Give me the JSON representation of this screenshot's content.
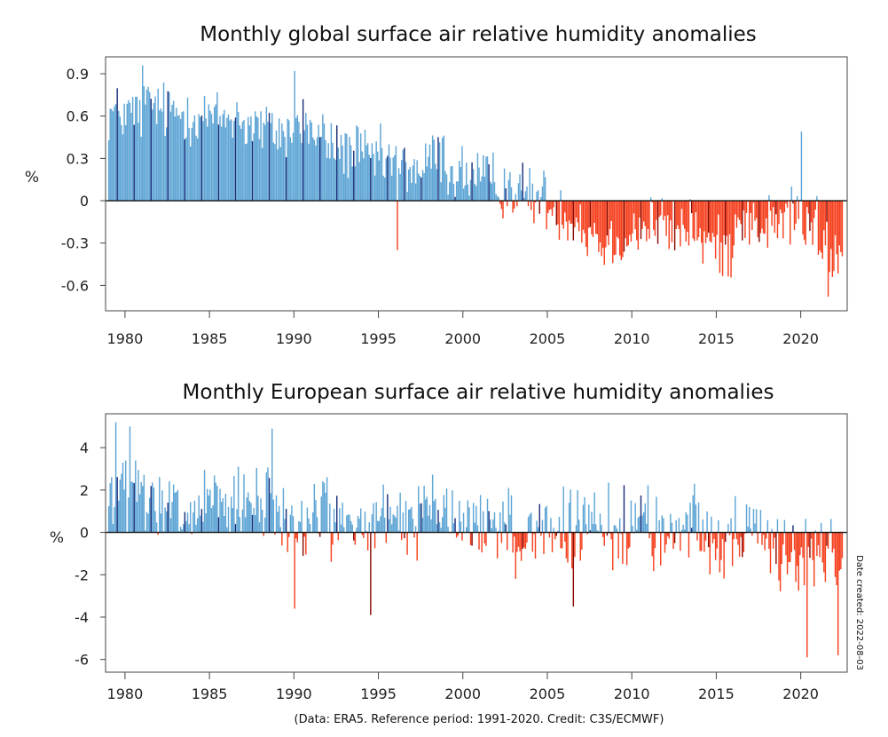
{
  "chart_data": [
    {
      "type": "bar",
      "title": "Monthly global surface air relative humidity anomalies",
      "ylabel": "%",
      "xlabel": "",
      "xlim": [
        1978.85,
        2022.75
      ],
      "ylim": [
        -0.78,
        1.02
      ],
      "yticks": [
        -0.6,
        -0.3,
        0,
        0.3,
        0.6,
        0.9
      ],
      "ytick_labels": [
        "-0.6",
        "-0.3",
        "0",
        "0.3",
        "0.6",
        "0.9"
      ],
      "xticks": [
        1980,
        1985,
        1990,
        1995,
        2000,
        2005,
        2010,
        2015,
        2020
      ],
      "xtick_labels": [
        "1980",
        "1985",
        "1990",
        "1995",
        "2000",
        "2005",
        "2010",
        "2015",
        "2020"
      ],
      "colors": {
        "positive": "#5ea5d5",
        "positive_highlight": "#1a2f7a",
        "negative": "#f5401e",
        "negative_highlight": "#8b0a00"
      },
      "start_year": 1979,
      "start_month": 1,
      "annual_anomalies": [
        {
          "year": 1979,
          "value": 0.62
        },
        {
          "year": 1980,
          "value": 0.62
        },
        {
          "year": 1981,
          "value": 0.68
        },
        {
          "year": 1982,
          "value": 0.63
        },
        {
          "year": 1983,
          "value": 0.62
        },
        {
          "year": 1984,
          "value": 0.6
        },
        {
          "year": 1985,
          "value": 0.58
        },
        {
          "year": 1986,
          "value": 0.6
        },
        {
          "year": 1987,
          "value": 0.53
        },
        {
          "year": 1988,
          "value": 0.5
        },
        {
          "year": 1989,
          "value": 0.48
        },
        {
          "year": 1990,
          "value": 0.55
        },
        {
          "year": 1991,
          "value": 0.45
        },
        {
          "year": 1992,
          "value": 0.38
        },
        {
          "year": 1993,
          "value": 0.35
        },
        {
          "year": 1994,
          "value": 0.3
        },
        {
          "year": 1995,
          "value": 0.28
        },
        {
          "year": 1996,
          "value": 0.24
        },
        {
          "year": 1997,
          "value": 0.22
        },
        {
          "year": 1998,
          "value": 0.32
        },
        {
          "year": 1999,
          "value": 0.2
        },
        {
          "year": 2000,
          "value": 0.18
        },
        {
          "year": 2001,
          "value": 0.14
        },
        {
          "year": 2002,
          "value": 0.1
        },
        {
          "year": 2003,
          "value": 0.06
        },
        {
          "year": 2004,
          "value": 0.02
        },
        {
          "year": 2005,
          "value": -0.06
        },
        {
          "year": 2006,
          "value": -0.12
        },
        {
          "year": 2007,
          "value": -0.22
        },
        {
          "year": 2008,
          "value": -0.3
        },
        {
          "year": 2009,
          "value": -0.26
        },
        {
          "year": 2010,
          "value": -0.2
        },
        {
          "year": 2011,
          "value": -0.16
        },
        {
          "year": 2012,
          "value": -0.22
        },
        {
          "year": 2013,
          "value": -0.18
        },
        {
          "year": 2014,
          "value": -0.3
        },
        {
          "year": 2015,
          "value": -0.34
        },
        {
          "year": 2016,
          "value": -0.12
        },
        {
          "year": 2017,
          "value": -0.18
        },
        {
          "year": 2018,
          "value": -0.16
        },
        {
          "year": 2019,
          "value": -0.1
        },
        {
          "year": 2020,
          "value": -0.18
        },
        {
          "year": 2021,
          "value": -0.35
        },
        {
          "year": 2022,
          "value": -0.42
        }
      ],
      "highlight_month": 7,
      "last_month": "2022-06",
      "annotated_extremes": [
        {
          "date": "1981-01",
          "value": 0.96
        },
        {
          "date": "1990-01",
          "value": 0.92
        },
        {
          "date": "1996-02",
          "value": -0.35
        },
        {
          "date": "2020-01",
          "value": 0.49
        },
        {
          "date": "2021-08",
          "value": -0.68
        }
      ]
    },
    {
      "type": "bar",
      "title": "Monthly European surface air relative humidity anomalies",
      "ylabel": "%",
      "xlabel": "",
      "xlim": [
        1978.85,
        2022.75
      ],
      "ylim": [
        -6.6,
        5.6
      ],
      "yticks": [
        -6,
        -4,
        -2,
        0,
        2,
        4
      ],
      "ytick_labels": [
        "-6",
        "-4",
        "-2",
        "0",
        "2",
        "4"
      ],
      "xticks": [
        1980,
        1985,
        1990,
        1995,
        2000,
        2005,
        2010,
        2015,
        2020
      ],
      "xtick_labels": [
        "1980",
        "1985",
        "1990",
        "1995",
        "2000",
        "2005",
        "2010",
        "2015",
        "2020"
      ],
      "colors": {
        "positive": "#5ea5d5",
        "positive_highlight": "#1a2f7a",
        "negative": "#f5401e",
        "negative_highlight": "#8b0a00"
      },
      "start_year": 1979,
      "start_month": 1,
      "annual_anomalies": [
        {
          "year": 1979,
          "value": 1.8
        },
        {
          "year": 1980,
          "value": 2.0
        },
        {
          "year": 1981,
          "value": 1.2
        },
        {
          "year": 1982,
          "value": 1.0
        },
        {
          "year": 1983,
          "value": 0.8
        },
        {
          "year": 1984,
          "value": 1.0
        },
        {
          "year": 1985,
          "value": 1.4
        },
        {
          "year": 1986,
          "value": 1.0
        },
        {
          "year": 1987,
          "value": 1.2
        },
        {
          "year": 1988,
          "value": 1.4
        },
        {
          "year": 1989,
          "value": 0.6
        },
        {
          "year": 1990,
          "value": 0.2
        },
        {
          "year": 1991,
          "value": 1.2
        },
        {
          "year": 1992,
          "value": 0.6
        },
        {
          "year": 1993,
          "value": 0.3
        },
        {
          "year": 1994,
          "value": 0.4
        },
        {
          "year": 1995,
          "value": 0.5
        },
        {
          "year": 1996,
          "value": 0.6
        },
        {
          "year": 1997,
          "value": 0.8
        },
        {
          "year": 1998,
          "value": 1.0
        },
        {
          "year": 1999,
          "value": 0.6
        },
        {
          "year": 2000,
          "value": 0.4
        },
        {
          "year": 2001,
          "value": 0.4
        },
        {
          "year": 2002,
          "value": 0.3
        },
        {
          "year": 2003,
          "value": -0.4
        },
        {
          "year": 2004,
          "value": 0.3
        },
        {
          "year": 2005,
          "value": 0.2
        },
        {
          "year": 2006,
          "value": -0.2
        },
        {
          "year": 2007,
          "value": 0.3
        },
        {
          "year": 2008,
          "value": 0.2
        },
        {
          "year": 2009,
          "value": 0.2
        },
        {
          "year": 2010,
          "value": 0.6
        },
        {
          "year": 2011,
          "value": -0.2
        },
        {
          "year": 2012,
          "value": 0.2
        },
        {
          "year": 2013,
          "value": 0.5
        },
        {
          "year": 2014,
          "value": 0.1
        },
        {
          "year": 2015,
          "value": -0.4
        },
        {
          "year": 2016,
          "value": -0.2
        },
        {
          "year": 2017,
          "value": -0.4
        },
        {
          "year": 2018,
          "value": -0.6
        },
        {
          "year": 2019,
          "value": -1.0
        },
        {
          "year": 2020,
          "value": -1.2
        },
        {
          "year": 2021,
          "value": -1.0
        },
        {
          "year": 2022,
          "value": -2.2
        }
      ],
      "highlight_month": 7,
      "last_month": "2022-06",
      "annotated_extremes": [
        {
          "date": "1979-06",
          "value": 5.2
        },
        {
          "date": "1980-04",
          "value": 5.0
        },
        {
          "date": "1988-09",
          "value": 4.9
        },
        {
          "date": "1990-01",
          "value": -3.6
        },
        {
          "date": "1994-07",
          "value": -3.9
        },
        {
          "date": "2006-07",
          "value": -3.5
        },
        {
          "date": "2020-05",
          "value": -5.9
        },
        {
          "date": "2022-03",
          "value": -5.8
        }
      ]
    }
  ],
  "footer": {
    "credit": "(Data: ERA5.  Reference period: 1991-2020.  Credit: C3S/ECMWF)",
    "date_created": "Date created:  2022-08-03"
  }
}
